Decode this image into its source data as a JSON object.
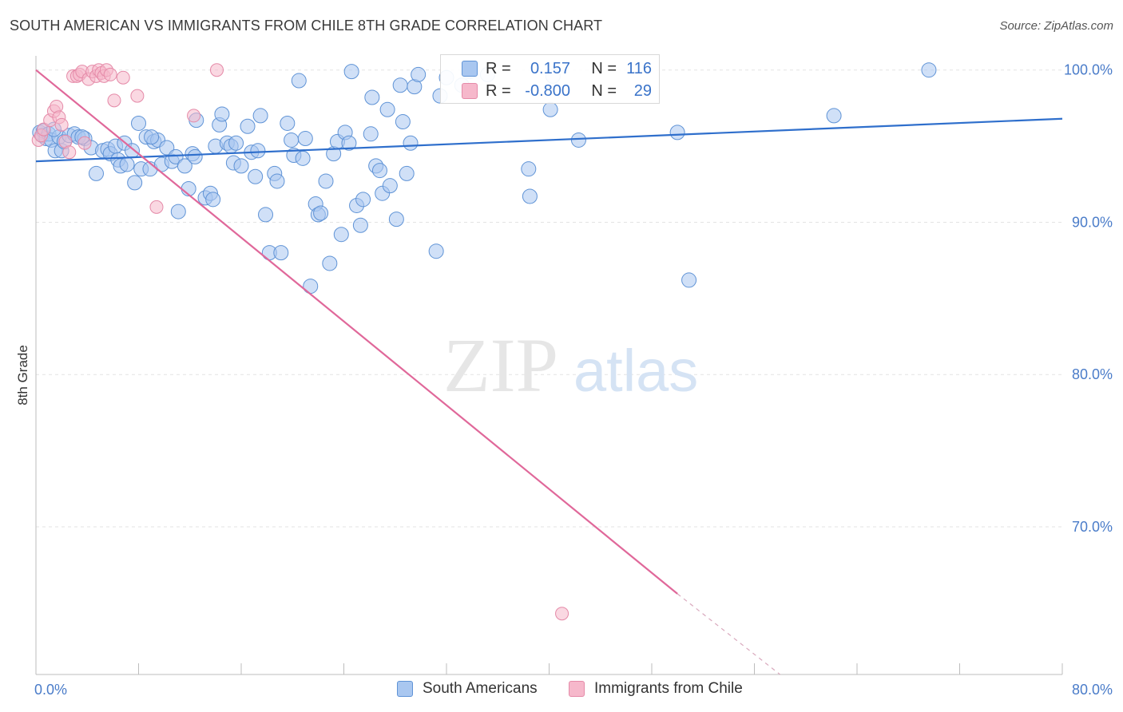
{
  "header": {
    "title": "SOUTH AMERICAN VS IMMIGRANTS FROM CHILE 8TH GRADE CORRELATION CHART",
    "source": "Source: ZipAtlas.com"
  },
  "watermark": {
    "zip": "ZIP",
    "atlas": "atlas"
  },
  "legend": {
    "series1": {
      "r_label": "R =",
      "r_value": "0.157",
      "n_label": "N =",
      "n_value": "116"
    },
    "series2": {
      "r_label": "R =",
      "r_value": "-0.800",
      "n_label": "N =",
      "n_value": "29"
    }
  },
  "bottom_legend": {
    "series1_label": "South Americans",
    "series2_label": "Immigrants from Chile"
  },
  "colors": {
    "blue_fill": "#a9c7f0",
    "blue_stroke": "#5f93d6",
    "blue_line": "#2f6fcc",
    "pink_fill": "#f6b8cb",
    "pink_stroke": "#e58aa8",
    "pink_line": "#e0689a",
    "tick_text": "#4a7cc9",
    "grid": "#e3e3e3"
  },
  "chart_data": {
    "type": "scatter",
    "xlabel": "",
    "ylabel": "8th Grade",
    "xlim": [
      0,
      80
    ],
    "ylim": [
      60.3,
      102.5
    ],
    "x_tick_labels": [
      {
        "value": 0,
        "label": "0.0%"
      },
      {
        "value": 80,
        "label": "80.0%"
      }
    ],
    "x_minor_ticks": [
      0,
      8,
      16,
      24,
      32,
      40,
      48,
      56,
      64,
      72,
      80
    ],
    "y_ticks": [
      {
        "value": 100,
        "label": "100.0%"
      },
      {
        "value": 90,
        "label": "90.0%"
      },
      {
        "value": 80,
        "label": "80.0%"
      },
      {
        "value": 70,
        "label": "70.0%"
      }
    ],
    "grid": true,
    "legend_position": "top-center",
    "series": [
      {
        "name": "South Americans",
        "color": "#5f93d6",
        "trend": {
          "x": [
            0,
            80
          ],
          "y": [
            94.0,
            96.8
          ],
          "dashed_extension": false
        },
        "points": [
          [
            0.3,
            95.9
          ],
          [
            0.5,
            95.7
          ],
          [
            0.6,
            96.0
          ],
          [
            0.8,
            95.5
          ],
          [
            1.0,
            95.8
          ],
          [
            1.2,
            95.4
          ],
          [
            1.5,
            94.7
          ],
          [
            1.8,
            95.6
          ],
          [
            2.0,
            94.7
          ],
          [
            2.2,
            95.3
          ],
          [
            2.6,
            95.7
          ],
          [
            3.0,
            95.8
          ],
          [
            3.3,
            95.6
          ],
          [
            3.8,
            95.5
          ],
          [
            4.3,
            94.9
          ],
          [
            4.7,
            93.2
          ],
          [
            5.2,
            94.7
          ],
          [
            5.6,
            94.8
          ],
          [
            5.8,
            94.5
          ],
          [
            6.2,
            95.0
          ],
          [
            6.4,
            94.1
          ],
          [
            6.6,
            93.7
          ],
          [
            6.9,
            95.2
          ],
          [
            7.1,
            93.8
          ],
          [
            7.5,
            94.7
          ],
          [
            7.7,
            92.6
          ],
          [
            8.0,
            96.5
          ],
          [
            8.2,
            93.5
          ],
          [
            8.6,
            95.6
          ],
          [
            8.9,
            93.5
          ],
          [
            9.2,
            95.3
          ],
          [
            9.5,
            95.4
          ],
          [
            9.8,
            93.8
          ],
          [
            10.2,
            94.9
          ],
          [
            10.6,
            94.0
          ],
          [
            10.9,
            94.3
          ],
          [
            11.1,
            90.7
          ],
          [
            11.6,
            93.7
          ],
          [
            11.9,
            92.2
          ],
          [
            12.2,
            94.5
          ],
          [
            12.4,
            94.3
          ],
          [
            12.5,
            96.7
          ],
          [
            13.2,
            91.6
          ],
          [
            13.6,
            91.9
          ],
          [
            13.8,
            91.5
          ],
          [
            14.0,
            95.0
          ],
          [
            14.3,
            96.4
          ],
          [
            14.5,
            97.1
          ],
          [
            14.9,
            95.2
          ],
          [
            15.2,
            95.0
          ],
          [
            15.4,
            93.9
          ],
          [
            15.6,
            95.2
          ],
          [
            16.0,
            93.7
          ],
          [
            16.5,
            96.3
          ],
          [
            16.8,
            94.6
          ],
          [
            17.1,
            93.0
          ],
          [
            17.5,
            97.0
          ],
          [
            17.9,
            90.5
          ],
          [
            18.2,
            88.0
          ],
          [
            18.6,
            93.2
          ],
          [
            18.8,
            92.7
          ],
          [
            19.1,
            88.0
          ],
          [
            19.6,
            96.5
          ],
          [
            19.9,
            95.4
          ],
          [
            20.1,
            94.4
          ],
          [
            20.5,
            99.3
          ],
          [
            20.8,
            94.2
          ],
          [
            21.0,
            95.5
          ],
          [
            21.4,
            85.8
          ],
          [
            21.8,
            91.2
          ],
          [
            22.0,
            90.5
          ],
          [
            22.2,
            90.6
          ],
          [
            22.6,
            92.7
          ],
          [
            22.9,
            87.3
          ],
          [
            23.2,
            94.5
          ],
          [
            23.5,
            95.3
          ],
          [
            23.8,
            89.2
          ],
          [
            24.1,
            95.9
          ],
          [
            24.4,
            95.2
          ],
          [
            24.6,
            99.9
          ],
          [
            25.0,
            91.1
          ],
          [
            25.3,
            89.8
          ],
          [
            25.5,
            91.5
          ],
          [
            26.1,
            95.8
          ],
          [
            26.2,
            98.2
          ],
          [
            26.5,
            93.7
          ],
          [
            26.8,
            93.4
          ],
          [
            27.0,
            91.9
          ],
          [
            27.4,
            97.4
          ],
          [
            27.6,
            92.4
          ],
          [
            28.1,
            90.2
          ],
          [
            28.4,
            99.0
          ],
          [
            28.6,
            96.6
          ],
          [
            28.9,
            93.2
          ],
          [
            29.2,
            95.2
          ],
          [
            29.5,
            98.9
          ],
          [
            29.8,
            99.7
          ],
          [
            31.2,
            88.1
          ],
          [
            31.5,
            98.3
          ],
          [
            32.0,
            99.5
          ],
          [
            33.2,
            99.0
          ],
          [
            33.8,
            99.9
          ],
          [
            35.2,
            99.7
          ],
          [
            38.4,
            93.5
          ],
          [
            38.5,
            91.7
          ],
          [
            40.1,
            97.4
          ],
          [
            40.3,
            99.6
          ],
          [
            42.3,
            95.4
          ],
          [
            50.0,
            95.9
          ],
          [
            50.9,
            86.2
          ],
          [
            62.2,
            97.0
          ],
          [
            69.6,
            100.0
          ],
          [
            1.4,
            96.1
          ],
          [
            3.6,
            95.6
          ],
          [
            9.0,
            95.6
          ],
          [
            17.3,
            94.7
          ]
        ]
      },
      {
        "name": "Immigrants from Chile",
        "color": "#e58aa8",
        "trend": {
          "x": [
            0,
            50
          ],
          "y": [
            100.0,
            65.6
          ],
          "dashed_extension": true,
          "dashed_x": [
            50,
            58
          ],
          "dashed_y": [
            65.6,
            60.3
          ]
        },
        "points": [
          [
            0.2,
            95.4
          ],
          [
            0.4,
            95.7
          ],
          [
            0.6,
            96.1
          ],
          [
            1.1,
            96.7
          ],
          [
            1.4,
            97.3
          ],
          [
            1.6,
            97.6
          ],
          [
            1.8,
            96.9
          ],
          [
            2.0,
            96.4
          ],
          [
            2.3,
            95.3
          ],
          [
            2.6,
            94.6
          ],
          [
            2.9,
            99.6
          ],
          [
            3.2,
            99.6
          ],
          [
            3.4,
            99.7
          ],
          [
            3.6,
            99.9
          ],
          [
            3.8,
            95.2
          ],
          [
            4.1,
            99.4
          ],
          [
            4.4,
            99.9
          ],
          [
            4.7,
            99.6
          ],
          [
            4.9,
            100.0
          ],
          [
            5.1,
            99.8
          ],
          [
            5.3,
            99.6
          ],
          [
            5.5,
            100.0
          ],
          [
            5.8,
            99.7
          ],
          [
            6.1,
            98.0
          ],
          [
            6.8,
            99.5
          ],
          [
            7.9,
            98.3
          ],
          [
            9.4,
            91.0
          ],
          [
            12.3,
            97.0
          ],
          [
            14.1,
            100.0
          ]
        ],
        "outlier": [
          41.0,
          64.3
        ]
      }
    ]
  }
}
